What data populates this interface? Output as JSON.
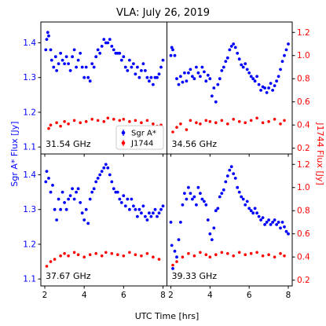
{
  "chart_data": {
    "type": "scatter",
    "title": "VLA: July 26, 2019",
    "xlabel": "UTC Time [hrs]",
    "ylabel_left": "Sgr A* Flux [Jy]",
    "ylabel_right": "J1744 Flux [Jy]",
    "xlim": [
      1.8,
      8.2
    ],
    "ylim_left": [
      1.08,
      1.46
    ],
    "ylim_right": [
      0.15,
      1.29
    ],
    "xticks": [
      "2",
      "4",
      "6",
      "8"
    ],
    "yticks_left": [
      "1.1",
      "1.2",
      "1.3",
      "1.4"
    ],
    "yticks_right": [
      "0.2",
      "0.4",
      "0.6",
      "0.8",
      "1.0",
      "1.2"
    ],
    "legend": {
      "location": "lower-right of top-left panel",
      "entries": [
        "Sgr A*",
        "J1744"
      ]
    },
    "colors": {
      "sgra": "#0000ff",
      "j1744": "#ff0000"
    },
    "panels": [
      {
        "freq_label": "31.54 GHz",
        "sgra": {
          "name": "Sgr A*",
          "x": [
            2.05,
            2.1,
            2.15,
            2.2,
            2.3,
            2.35,
            2.45,
            2.55,
            2.6,
            2.7,
            2.8,
            2.9,
            3.0,
            3.1,
            3.2,
            3.3,
            3.4,
            3.5,
            3.6,
            3.7,
            3.8,
            3.9,
            4.0,
            4.1,
            4.2,
            4.3,
            4.4,
            4.5,
            4.6,
            4.7,
            4.8,
            4.9,
            5.0,
            5.1,
            5.2,
            5.3,
            5.4,
            5.5,
            5.6,
            5.7,
            5.8,
            5.9,
            6.0,
            6.1,
            6.2,
            6.3,
            6.4,
            6.5,
            6.6,
            6.7,
            6.8,
            6.9,
            7.0,
            7.1,
            7.2,
            7.3,
            7.4,
            7.5,
            7.6,
            7.7,
            7.8,
            7.9,
            8.0
          ],
          "y": [
            1.38,
            1.41,
            1.43,
            1.42,
            1.38,
            1.35,
            1.33,
            1.36,
            1.32,
            1.34,
            1.37,
            1.35,
            1.34,
            1.36,
            1.34,
            1.32,
            1.36,
            1.38,
            1.33,
            1.35,
            1.37,
            1.33,
            1.3,
            1.33,
            1.3,
            1.29,
            1.34,
            1.33,
            1.36,
            1.38,
            1.37,
            1.39,
            1.41,
            1.4,
            1.4,
            1.41,
            1.39,
            1.38,
            1.37,
            1.37,
            1.37,
            1.35,
            1.36,
            1.33,
            1.32,
            1.35,
            1.33,
            1.34,
            1.31,
            1.33,
            1.3,
            1.32,
            1.34,
            1.32,
            1.3,
            1.29,
            1.3,
            1.28,
            1.3,
            1.3,
            1.31,
            1.33,
            1.35
          ]
        },
        "j1744": {
          "name": "J1744",
          "x": [
            2.2,
            2.3,
            2.6,
            2.8,
            3.0,
            3.2,
            3.5,
            3.8,
            4.1,
            4.4,
            4.7,
            5.0,
            5.2,
            5.5,
            5.8,
            6.0,
            6.3,
            6.6,
            6.9,
            7.2,
            7.5,
            7.7,
            7.9
          ],
          "y": [
            0.37,
            0.4,
            0.42,
            0.39,
            0.43,
            0.41,
            0.44,
            0.42,
            0.43,
            0.45,
            0.44,
            0.43,
            0.46,
            0.45,
            0.44,
            0.45,
            0.43,
            0.44,
            0.42,
            0.44,
            0.41,
            0.39,
            0.4
          ]
        }
      },
      {
        "freq_label": "34.56 GHz",
        "sgra": {
          "name": "Sgr A*",
          "x": [
            2.0,
            2.05,
            2.1,
            2.2,
            2.3,
            2.4,
            2.5,
            2.6,
            2.7,
            2.8,
            2.9,
            3.0,
            3.1,
            3.2,
            3.3,
            3.4,
            3.5,
            3.6,
            3.7,
            3.8,
            3.9,
            4.0,
            4.1,
            4.2,
            4.3,
            4.4,
            4.5,
            4.6,
            4.7,
            4.8,
            4.9,
            5.0,
            5.1,
            5.2,
            5.3,
            5.4,
            5.5,
            5.6,
            5.7,
            5.8,
            5.9,
            6.0,
            6.1,
            6.2,
            6.3,
            6.4,
            6.5,
            6.6,
            6.7,
            6.8,
            6.9,
            7.0,
            7.1,
            7.2,
            7.3,
            7.4,
            7.5,
            7.6,
            7.7,
            7.8,
            7.9,
            8.0
          ],
          "y": [
            1.0,
            1.07,
            1.05,
            1.0,
            0.8,
            0.75,
            0.82,
            0.77,
            0.85,
            0.78,
            0.85,
            0.88,
            0.82,
            0.8,
            0.9,
            0.85,
            0.82,
            0.9,
            0.86,
            0.78,
            0.83,
            0.8,
            0.65,
            0.72,
            0.6,
            0.75,
            0.8,
            0.87,
            0.9,
            0.95,
            0.98,
            1.05,
            1.08,
            1.1,
            1.07,
            1.02,
            0.97,
            0.92,
            0.9,
            0.93,
            0.88,
            0.85,
            0.82,
            0.8,
            0.78,
            0.82,
            0.75,
            0.7,
            0.73,
            0.72,
            0.68,
            0.72,
            0.76,
            0.7,
            0.74,
            0.78,
            0.82,
            0.88,
            0.95,
            1.0,
            1.05,
            1.1
          ]
        },
        "j1744": {
          "name": "J1744",
          "x": [
            2.1,
            2.3,
            2.5,
            2.8,
            3.0,
            3.3,
            3.5,
            3.8,
            4.0,
            4.3,
            4.6,
            4.9,
            5.2,
            5.5,
            5.8,
            6.1,
            6.4,
            6.7,
            7.0,
            7.3,
            7.6,
            7.8
          ],
          "y": [
            0.34,
            0.38,
            0.41,
            0.36,
            0.44,
            0.42,
            0.41,
            0.44,
            0.43,
            0.42,
            0.44,
            0.41,
            0.45,
            0.43,
            0.42,
            0.44,
            0.46,
            0.42,
            0.43,
            0.45,
            0.41,
            0.44
          ]
        }
      },
      {
        "freq_label": "37.67 GHz",
        "sgra": {
          "name": "Sgr A*",
          "x": [
            2.05,
            2.1,
            2.2,
            2.3,
            2.4,
            2.5,
            2.6,
            2.7,
            2.8,
            2.9,
            3.0,
            3.1,
            3.2,
            3.3,
            3.4,
            3.5,
            3.6,
            3.7,
            3.8,
            3.9,
            4.0,
            4.1,
            4.2,
            4.3,
            4.4,
            4.5,
            4.6,
            4.7,
            4.8,
            4.9,
            5.0,
            5.1,
            5.2,
            5.3,
            5.4,
            5.5,
            5.6,
            5.7,
            5.8,
            5.9,
            6.0,
            6.1,
            6.2,
            6.3,
            6.4,
            6.5,
            6.6,
            6.7,
            6.8,
            6.9,
            7.0,
            7.1,
            7.2,
            7.3,
            7.4,
            7.5,
            7.6,
            7.7,
            7.8,
            7.9,
            8.0
          ],
          "y": [
            1.38,
            1.41,
            1.39,
            1.35,
            1.37,
            1.3,
            1.27,
            1.33,
            1.3,
            1.35,
            1.32,
            1.3,
            1.33,
            1.34,
            1.36,
            1.33,
            1.35,
            1.36,
            1.32,
            1.29,
            1.27,
            1.3,
            1.26,
            1.33,
            1.35,
            1.36,
            1.38,
            1.39,
            1.4,
            1.41,
            1.42,
            1.43,
            1.42,
            1.4,
            1.38,
            1.36,
            1.35,
            1.35,
            1.33,
            1.32,
            1.34,
            1.31,
            1.33,
            1.3,
            1.33,
            1.31,
            1.3,
            1.28,
            1.3,
            1.29,
            1.31,
            1.28,
            1.27,
            1.29,
            1.28,
            1.29,
            1.3,
            1.28,
            1.29,
            1.3,
            1.31
          ]
        },
        "j1744": {
          "name": "J1744",
          "x": [
            2.1,
            2.3,
            2.5,
            2.8,
            3.0,
            3.2,
            3.5,
            3.7,
            4.0,
            4.3,
            4.6,
            4.9,
            5.1,
            5.4,
            5.7,
            6.0,
            6.3,
            6.6,
            6.9,
            7.2,
            7.5,
            7.8
          ],
          "y": [
            0.32,
            0.36,
            0.38,
            0.41,
            0.43,
            0.41,
            0.44,
            0.42,
            0.4,
            0.42,
            0.43,
            0.41,
            0.44,
            0.43,
            0.42,
            0.41,
            0.44,
            0.42,
            0.41,
            0.43,
            0.4,
            0.38
          ]
        }
      },
      {
        "freq_label": "39.33 GHz",
        "sgra": {
          "name": "Sgr A*",
          "x": [
            2.0,
            2.05,
            2.1,
            2.2,
            2.3,
            2.4,
            2.5,
            2.6,
            2.7,
            2.8,
            2.9,
            3.0,
            3.1,
            3.2,
            3.3,
            3.4,
            3.5,
            3.6,
            3.7,
            3.8,
            3.9,
            4.0,
            4.1,
            4.2,
            4.3,
            4.4,
            4.5,
            4.6,
            4.7,
            4.8,
            4.9,
            5.0,
            5.1,
            5.2,
            5.3,
            5.4,
            5.5,
            5.6,
            5.7,
            5.8,
            5.9,
            6.0,
            6.1,
            6.2,
            6.3,
            6.4,
            6.5,
            6.6,
            6.7,
            6.8,
            6.9,
            7.0,
            7.1,
            7.2,
            7.3,
            7.4,
            7.5,
            7.6,
            7.7,
            7.8,
            7.9,
            8.0
          ],
          "y": [
            0.7,
            0.5,
            0.3,
            0.45,
            0.4,
            0.55,
            0.7,
            0.85,
            0.95,
            0.9,
            1.0,
            0.95,
            0.9,
            0.92,
            0.85,
            1.0,
            0.95,
            0.9,
            0.88,
            0.85,
            0.72,
            0.6,
            0.55,
            0.65,
            0.8,
            0.82,
            0.92,
            0.95,
            0.98,
            1.05,
            1.1,
            1.15,
            1.18,
            1.12,
            1.08,
            1.0,
            0.96,
            0.92,
            0.9,
            0.85,
            0.88,
            0.82,
            0.8,
            0.78,
            0.82,
            0.78,
            0.75,
            0.72,
            0.74,
            0.68,
            0.7,
            0.72,
            0.68,
            0.7,
            0.72,
            0.68,
            0.7,
            0.65,
            0.7,
            0.66,
            0.62,
            0.6
          ]
        },
        "j1744": {
          "name": "J1744",
          "x": [
            2.1,
            2.3,
            2.6,
            2.9,
            3.2,
            3.5,
            3.8,
            4.0,
            4.3,
            4.6,
            4.9,
            5.2,
            5.5,
            5.8,
            6.1,
            6.4,
            6.7,
            7.0,
            7.3,
            7.6,
            7.8
          ],
          "y": [
            0.33,
            0.36,
            0.4,
            0.43,
            0.41,
            0.44,
            0.42,
            0.4,
            0.42,
            0.44,
            0.43,
            0.41,
            0.44,
            0.42,
            0.43,
            0.44,
            0.41,
            0.42,
            0.4,
            0.43,
            0.41
          ]
        }
      }
    ]
  }
}
